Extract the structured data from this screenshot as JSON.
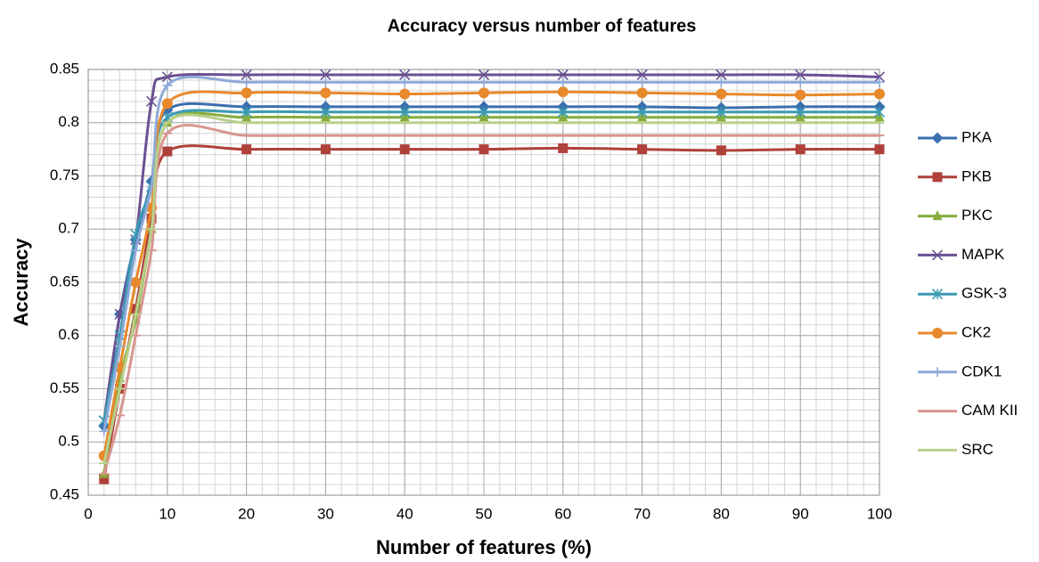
{
  "chart_data": {
    "type": "line",
    "title": "Accuracy versus number of features",
    "x_label": "Number of features (%)",
    "y_label": "Accuracy",
    "x": [
      2,
      4,
      6,
      8,
      10,
      20,
      30,
      40,
      50,
      60,
      70,
      80,
      90,
      100
    ],
    "xlim": [
      0,
      100
    ],
    "xticks": [
      0,
      10,
      20,
      30,
      40,
      50,
      60,
      70,
      80,
      90,
      100
    ],
    "ylim": [
      0.45,
      0.85
    ],
    "yticks": [
      0.45,
      0.5,
      0.55,
      0.6,
      0.65,
      0.7,
      0.75,
      0.8,
      0.85
    ],
    "grid": true,
    "minor_grid": {
      "x": 2,
      "y": 0.01
    },
    "smooth": true,
    "legend": "right",
    "series": [
      {
        "name": "PKA",
        "color": "#3b6fae",
        "marker": "diamond",
        "values": [
          0.515,
          0.62,
          0.69,
          0.745,
          0.812,
          0.815,
          0.815,
          0.815,
          0.815,
          0.815,
          0.815,
          0.814,
          0.815,
          0.815
        ]
      },
      {
        "name": "PKB",
        "color": "#b0403a",
        "marker": "square",
        "values": [
          0.465,
          0.55,
          0.625,
          0.71,
          0.773,
          0.775,
          0.775,
          0.775,
          0.775,
          0.776,
          0.775,
          0.774,
          0.775,
          0.775
        ]
      },
      {
        "name": "PKC",
        "color": "#86ad3c",
        "marker": "triangle",
        "values": [
          0.47,
          0.56,
          0.615,
          0.7,
          0.8,
          0.805,
          0.805,
          0.805,
          0.805,
          0.805,
          0.805,
          0.805,
          0.805,
          0.805
        ]
      },
      {
        "name": "MAPK",
        "color": "#6a5092",
        "marker": "x",
        "values": [
          0.52,
          0.62,
          0.69,
          0.82,
          0.843,
          0.845,
          0.845,
          0.845,
          0.845,
          0.845,
          0.845,
          0.845,
          0.845,
          0.843
        ]
      },
      {
        "name": "GSK-3",
        "color": "#3b9bb3",
        "marker": "asterisk",
        "values": [
          0.52,
          0.6,
          0.695,
          0.74,
          0.805,
          0.81,
          0.81,
          0.81,
          0.81,
          0.81,
          0.81,
          0.81,
          0.81,
          0.81
        ]
      },
      {
        "name": "CK2",
        "color": "#e8892c",
        "marker": "circle",
        "values": [
          0.487,
          0.57,
          0.65,
          0.72,
          0.818,
          0.828,
          0.828,
          0.827,
          0.828,
          0.829,
          0.828,
          0.827,
          0.826,
          0.827
        ]
      },
      {
        "name": "CDK1",
        "color": "#8eaad8",
        "marker": "plus",
        "values": [
          0.51,
          0.59,
          0.68,
          0.74,
          0.835,
          0.838,
          0.838,
          0.838,
          0.838,
          0.838,
          0.838,
          0.838,
          0.838,
          0.838
        ]
      },
      {
        "name": "CAM KII",
        "color": "#d9958f",
        "marker": "dash",
        "values": [
          0.47,
          0.525,
          0.6,
          0.68,
          0.79,
          0.788,
          0.788,
          0.788,
          0.788,
          0.788,
          0.788,
          0.788,
          0.788,
          0.788
        ]
      },
      {
        "name": "SRC",
        "color": "#b8cf8a",
        "marker": "dash",
        "values": [
          0.48,
          0.55,
          0.62,
          0.7,
          0.8,
          0.8,
          0.8,
          0.8,
          0.8,
          0.8,
          0.8,
          0.8,
          0.8,
          0.8
        ]
      }
    ]
  }
}
